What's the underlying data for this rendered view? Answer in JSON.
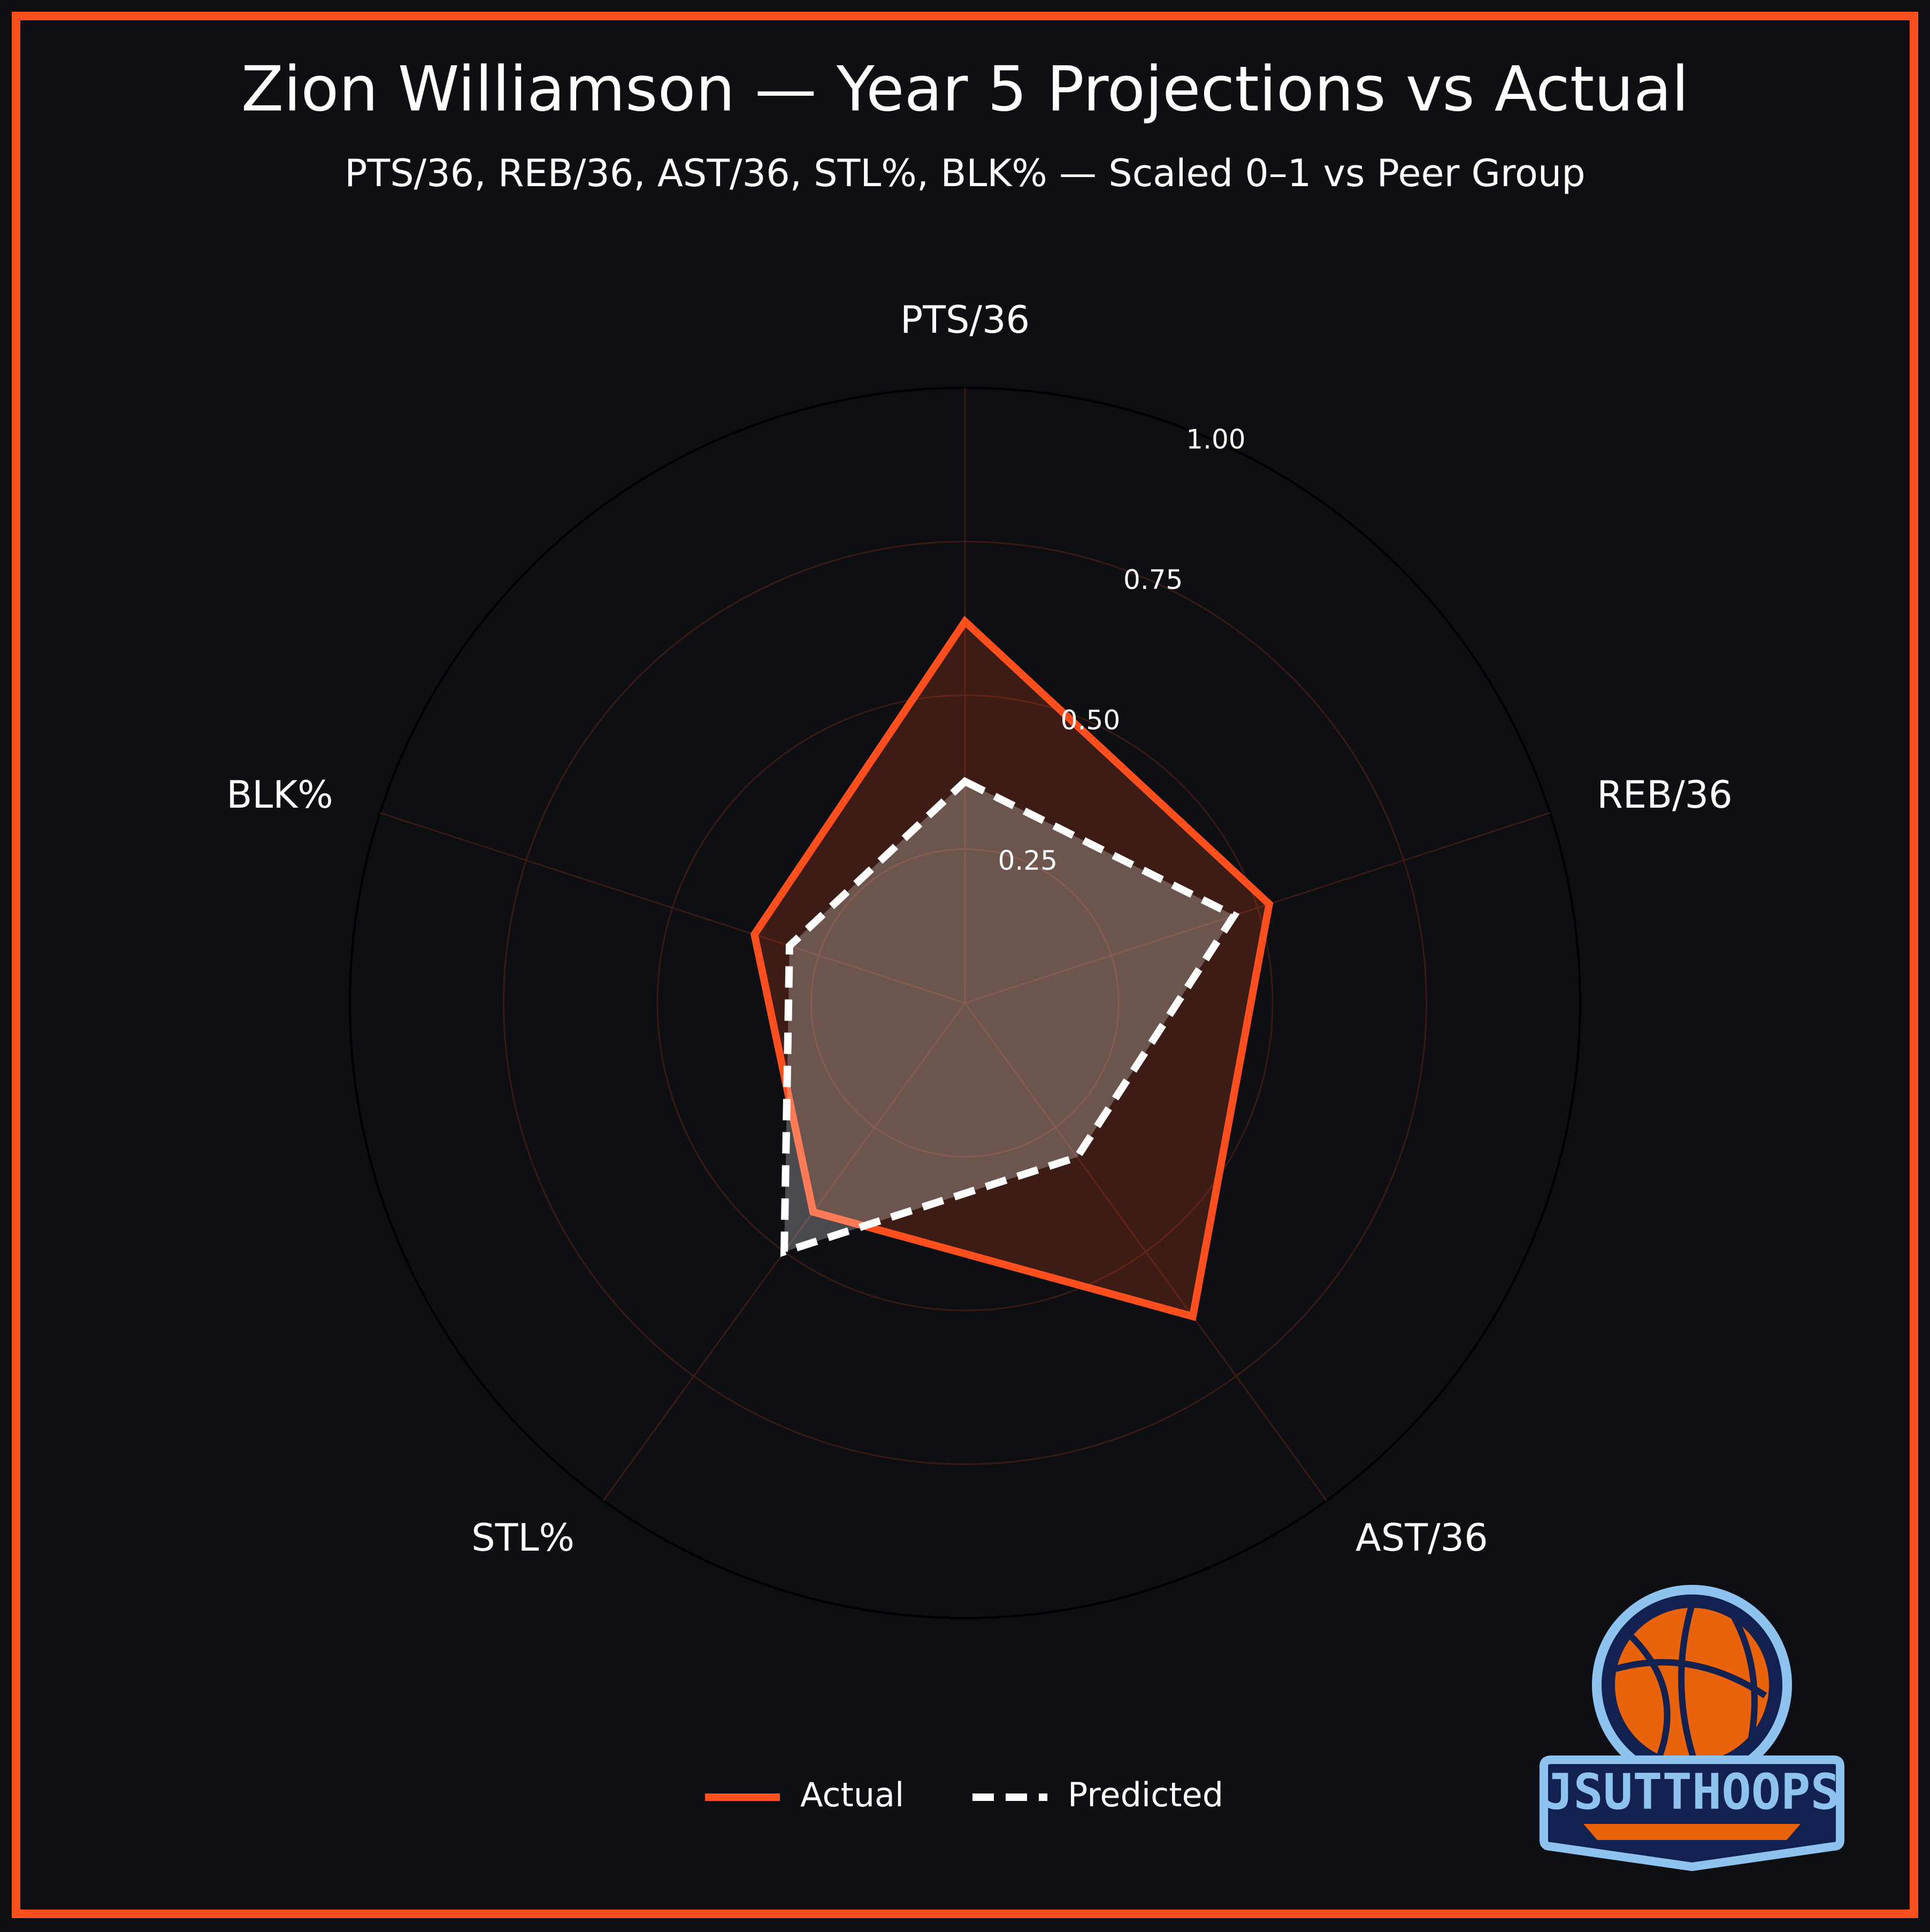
{
  "chart_data": {
    "type": "radar",
    "title": "Zion Williamson — Year 5 Projections vs Actual",
    "subtitle": "PTS/36, REB/36, AST/36, STL%, BLK% — Scaled 0–1 vs Peer Group",
    "categories": [
      "PTS/36",
      "REB/36",
      "AST/36",
      "STL%",
      "BLK%"
    ],
    "series": [
      {
        "name": "Actual",
        "color": "#ff4f1f",
        "linestyle": "solid",
        "values": [
          0.62,
          0.52,
          0.63,
          0.42,
          0.36
        ]
      },
      {
        "name": "Predicted",
        "color": "#ffffff",
        "linestyle": "dashed",
        "values": [
          0.36,
          0.46,
          0.31,
          0.5,
          0.3
        ]
      }
    ],
    "ylim": [
      0,
      1
    ],
    "yticks": [
      {
        "value": 0.25,
        "label": "0.25"
      },
      {
        "value": 0.5,
        "label": "0.50"
      },
      {
        "value": 0.75,
        "label": "0.75"
      },
      {
        "value": 1,
        "label": "1.00"
      }
    ],
    "grid": true,
    "legend": "bottom"
  },
  "logo": {
    "text": "JSUTTHOOPS"
  }
}
